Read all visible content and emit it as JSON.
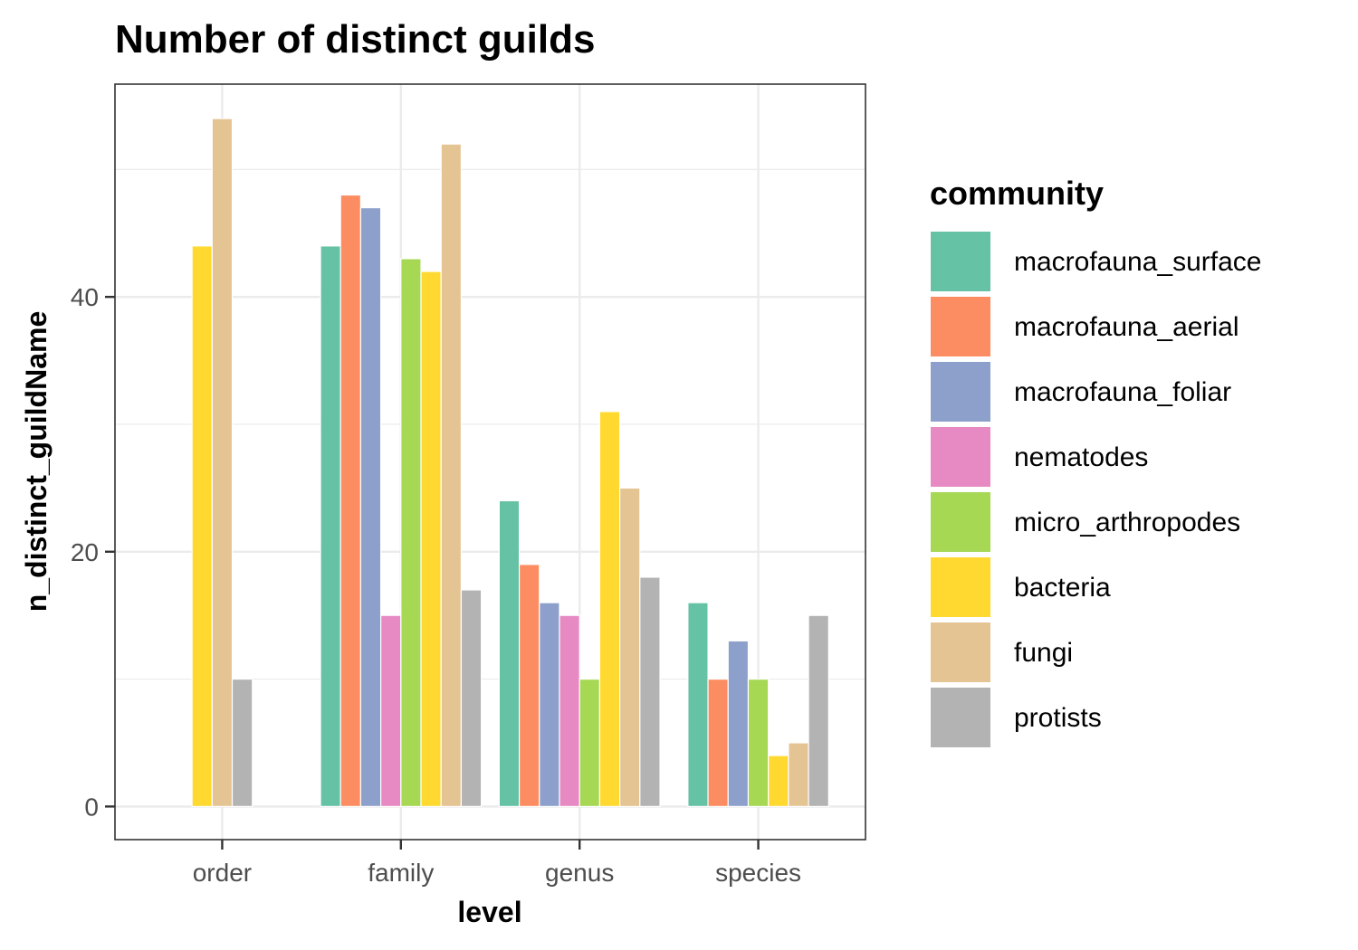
{
  "chart_data": {
    "type": "bar",
    "title": "Number of distinct guilds",
    "xlabel": "level",
    "ylabel": "n_distinct_guildName",
    "categories": [
      "order",
      "family",
      "genus",
      "species"
    ],
    "ylim": [
      -2.6,
      56.7
    ],
    "yticks": [
      0,
      20,
      40
    ],
    "grid": true,
    "legend": {
      "title": "community",
      "position": "right"
    },
    "series": [
      {
        "name": "macrofauna_surface",
        "color": "#66C2A5",
        "values": [
          null,
          44,
          24,
          16
        ]
      },
      {
        "name": "macrofauna_aerial",
        "color": "#FC8D62",
        "values": [
          null,
          48,
          19,
          10
        ]
      },
      {
        "name": "macrofauna_foliar",
        "color": "#8DA0CB",
        "values": [
          null,
          47,
          16,
          13
        ]
      },
      {
        "name": "nematodes",
        "color": "#E78AC3",
        "values": [
          null,
          15,
          15,
          null
        ]
      },
      {
        "name": "micro_arthropodes",
        "color": "#A6D854",
        "values": [
          null,
          43,
          10,
          10
        ]
      },
      {
        "name": "bacteria",
        "color": "#FFD92F",
        "values": [
          44,
          42,
          31,
          4
        ]
      },
      {
        "name": "fungi",
        "color": "#E5C494",
        "values": [
          54,
          52,
          25,
          5
        ]
      },
      {
        "name": "protists",
        "color": "#B3B3B3",
        "values": [
          10,
          17,
          18,
          15
        ]
      }
    ]
  }
}
